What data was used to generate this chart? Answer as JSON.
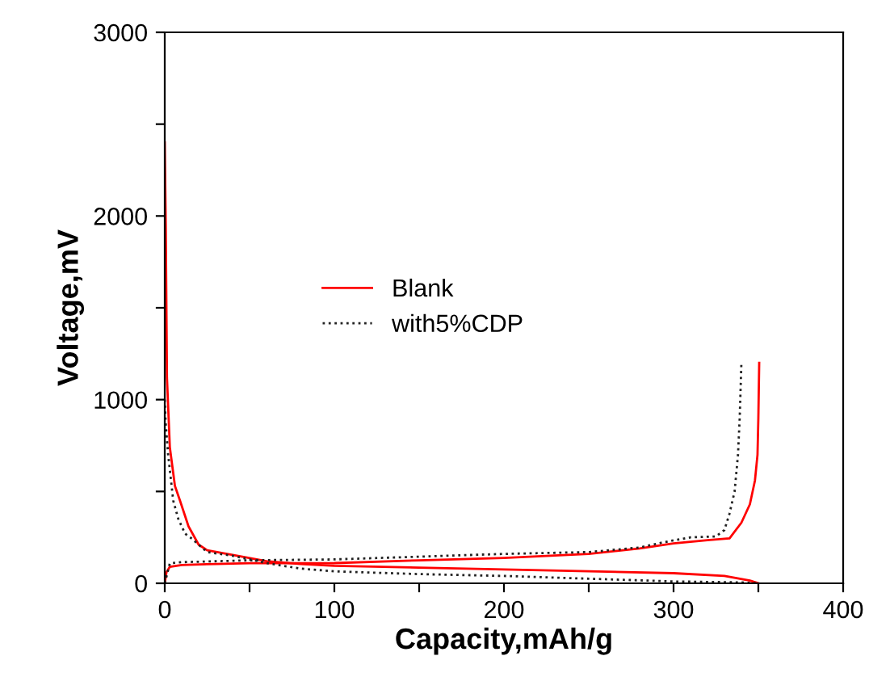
{
  "chart_data": {
    "type": "line",
    "xlabel": "Capacity,mAh/g",
    "ylabel": "Voltage,mV",
    "xlim": [
      0,
      400
    ],
    "ylim": [
      0,
      3000
    ],
    "xticks": [
      0,
      {
        "value": 50,
        "label": null
      },
      100,
      {
        "value": 150,
        "label": null
      },
      200,
      {
        "value": 250,
        "label": null
      },
      300,
      {
        "value": 350,
        "label": null
      },
      400
    ],
    "yticks": [
      0,
      {
        "value": 500,
        "label": null
      },
      1000,
      {
        "value": 1500,
        "label": null
      },
      2000,
      {
        "value": 2500,
        "label": null
      },
      3000
    ],
    "grid": false,
    "legend": "left",
    "marker": "none",
    "series": [
      {
        "name": "Blank",
        "color": "#ff0000",
        "line_style": "solid",
        "x": [
          0,
          0.6,
          1.3,
          3,
          6,
          9,
          14,
          20,
          25,
          40,
          60,
          80,
          100,
          150,
          200,
          250,
          300,
          330,
          345,
          350
        ],
        "values": [
          2400,
          1940,
          1120,
          740,
          530,
          450,
          310,
          210,
          180,
          155,
          120,
          105,
          95,
          85,
          75,
          65,
          55,
          40,
          15,
          0
        ]
      },
      {
        "color": "#ff0000",
        "line_style": "solid",
        "x": [
          0,
          1,
          3,
          10,
          30,
          50,
          100,
          150,
          200,
          250,
          280,
          300,
          320,
          333,
          340,
          345,
          348,
          349.5,
          350,
          350.5
        ],
        "values": [
          0,
          60,
          90,
          100,
          105,
          109,
          110,
          125,
          138,
          160,
          190,
          217,
          235,
          245,
          330,
          430,
          560,
          700,
          900,
          1200
        ]
      },
      {
        "name": "with5%CDP",
        "color": "#222222",
        "line_style": "dotted",
        "x": [
          0,
          0.5,
          2,
          5,
          8,
          12,
          15,
          25,
          40,
          60,
          80,
          100,
          150,
          200,
          250,
          300,
          340,
          350
        ],
        "values": [
          1000,
          880,
          700,
          450,
          350,
          270,
          250,
          170,
          150,
          110,
          80,
          65,
          50,
          40,
          25,
          10,
          5,
          0
        ]
      },
      {
        "color": "#222222",
        "line_style": "dotted",
        "x": [
          0,
          3,
          10,
          50,
          100,
          150,
          200,
          250,
          280,
          295,
          310,
          325,
          330,
          333,
          336,
          338,
          339,
          340
        ],
        "values": [
          0,
          109,
          115,
          125,
          130,
          145,
          160,
          170,
          195,
          225,
          250,
          255,
          290,
          380,
          500,
          700,
          900,
          1200
        ]
      }
    ]
  }
}
